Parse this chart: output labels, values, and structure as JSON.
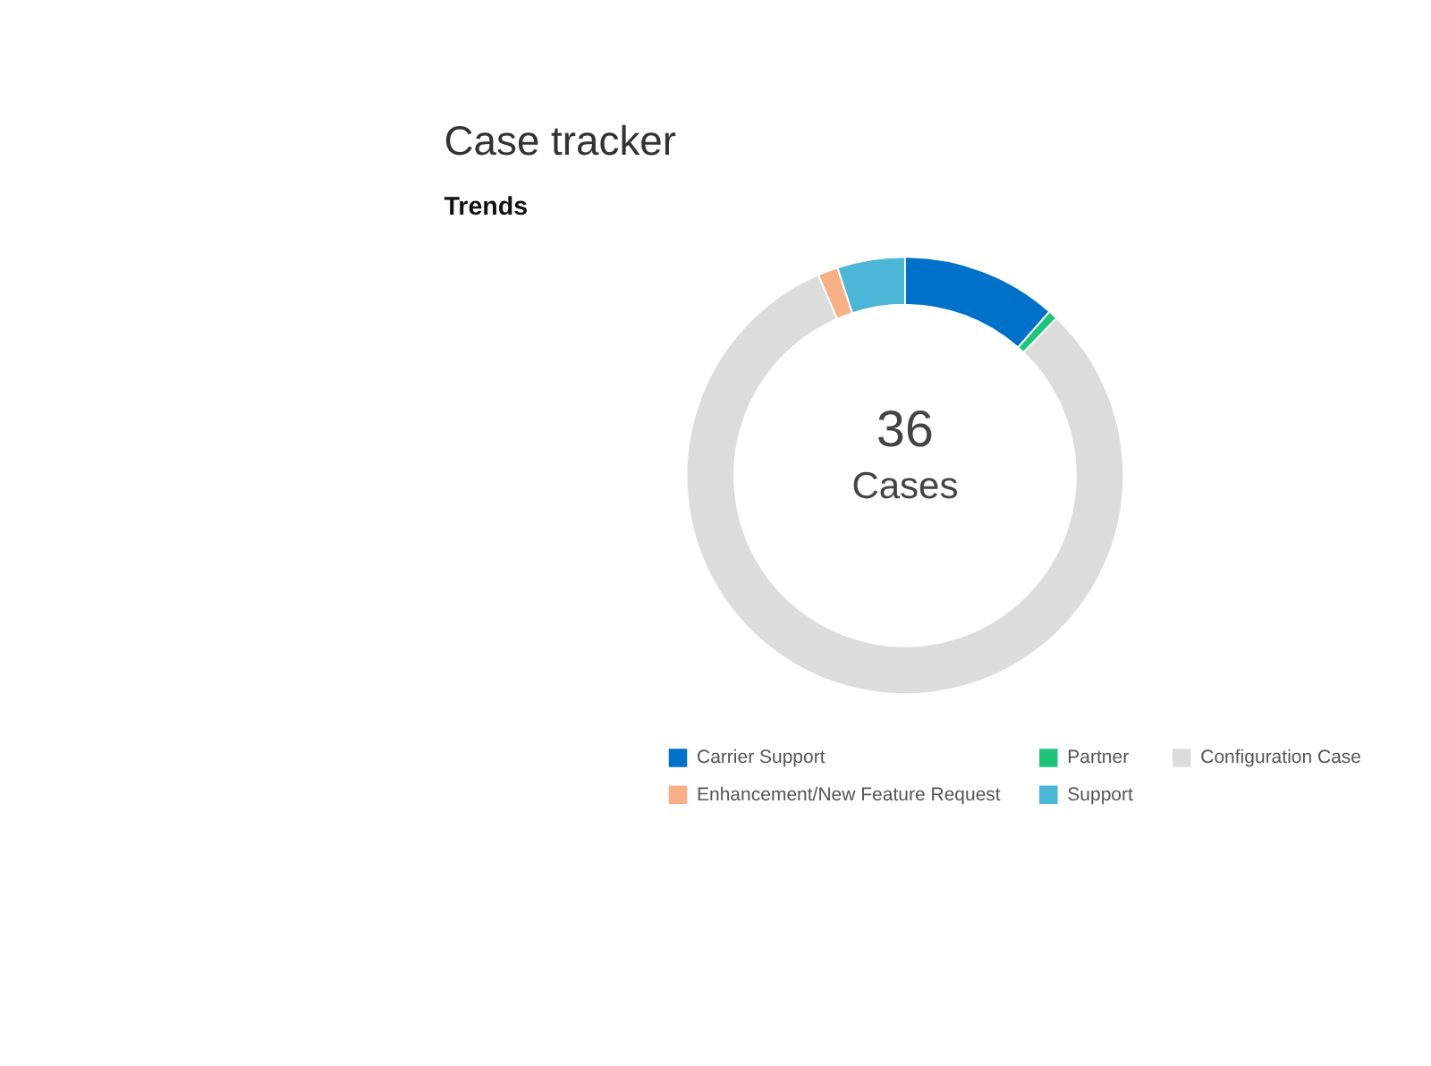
{
  "chart_data": {
    "type": "donut",
    "title": "Case tracker",
    "subtitle": "Trends",
    "categories": [
      "Carrier Support",
      "Partner",
      "Configuration Case",
      "Enhancement/New Feature Request",
      "Support"
    ],
    "values": [
      11.5,
      0.7,
      81.3,
      1.5,
      5.0
    ],
    "colors": [
      "#0070c9",
      "#1ec47a",
      "#dcdcdc",
      "#f7b086",
      "#4bb6d6"
    ],
    "annotations": [
      "36",
      "Cases"
    ],
    "legend": "bottom"
  }
}
